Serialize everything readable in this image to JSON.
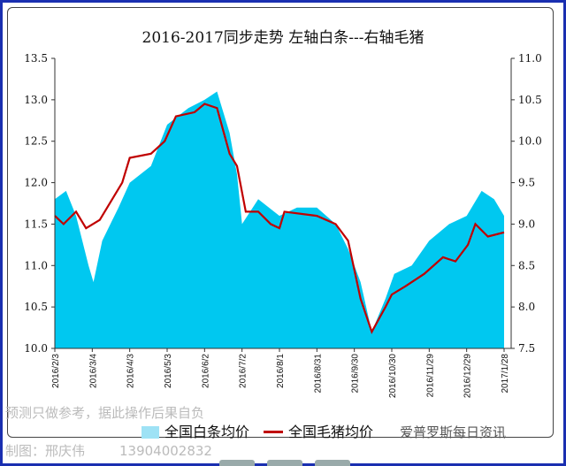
{
  "chart_data": {
    "type": "area+line",
    "title": "2016-2017同步走势      左轴白条---右轴毛猪",
    "left_axis": {
      "ylim": [
        10.0,
        13.5
      ],
      "ticks": [
        "10.0",
        "10.5",
        "11.0",
        "11.5",
        "12.0",
        "12.5",
        "13.0",
        "13.5"
      ]
    },
    "right_axis": {
      "ylim": [
        7.5,
        11.0
      ],
      "ticks": [
        "7.5",
        "8.0",
        "8.5",
        "9.0",
        "9.5",
        "10.0",
        "10.5",
        "11.0"
      ]
    },
    "x_ticks": [
      "2016/2/3",
      "2016/3/4",
      "2016/4/3",
      "2016/5/3",
      "2016/6/2",
      "2016/7/2",
      "2016/8/1",
      "2016/8/31",
      "2016/9/30",
      "2016/10/30",
      "2016/11/29",
      "2016/12/29",
      "2017/1/28"
    ],
    "series": [
      {
        "name": "全国白条均价",
        "axis": "left",
        "type": "area",
        "color": "#00c8f0",
        "points": [
          [
            "2016-02-03",
            11.8
          ],
          [
            "2016-02-12",
            11.9
          ],
          [
            "2016-02-20",
            11.6
          ],
          [
            "2016-03-01",
            11.0
          ],
          [
            "2016-03-05",
            10.8
          ],
          [
            "2016-03-12",
            11.3
          ],
          [
            "2016-03-25",
            11.7
          ],
          [
            "2016-04-03",
            12.0
          ],
          [
            "2016-04-20",
            12.2
          ],
          [
            "2016-05-03",
            12.7
          ],
          [
            "2016-05-20",
            12.9
          ],
          [
            "2016-06-02",
            13.0
          ],
          [
            "2016-06-12",
            13.1
          ],
          [
            "2016-06-22",
            12.6
          ],
          [
            "2016-06-28",
            12.1
          ],
          [
            "2016-07-02",
            11.5
          ],
          [
            "2016-07-15",
            11.8
          ],
          [
            "2016-08-01",
            11.6
          ],
          [
            "2016-08-15",
            11.7
          ],
          [
            "2016-08-31",
            11.7
          ],
          [
            "2016-09-15",
            11.5
          ],
          [
            "2016-09-25",
            11.2
          ],
          [
            "2016-10-05",
            10.8
          ],
          [
            "2016-10-14",
            10.2
          ],
          [
            "2016-10-25",
            10.6
          ],
          [
            "2016-11-01",
            10.9
          ],
          [
            "2016-11-15",
            11.0
          ],
          [
            "2016-11-29",
            11.3
          ],
          [
            "2016-12-15",
            11.5
          ],
          [
            "2016-12-29",
            11.6
          ],
          [
            "2017-01-10",
            11.9
          ],
          [
            "2017-01-20",
            11.8
          ],
          [
            "2017-01-28",
            11.6
          ]
        ]
      },
      {
        "name": "全国毛猪均价",
        "axis": "right",
        "type": "line",
        "color": "#c00000",
        "points": [
          [
            "2016-02-03",
            9.1
          ],
          [
            "2016-02-10",
            9.0
          ],
          [
            "2016-02-20",
            9.15
          ],
          [
            "2016-02-28",
            8.95
          ],
          [
            "2016-03-10",
            9.05
          ],
          [
            "2016-03-20",
            9.3
          ],
          [
            "2016-03-28",
            9.5
          ],
          [
            "2016-04-03",
            9.8
          ],
          [
            "2016-04-20",
            9.85
          ],
          [
            "2016-05-01",
            10.0
          ],
          [
            "2016-05-10",
            10.3
          ],
          [
            "2016-05-25",
            10.35
          ],
          [
            "2016-06-02",
            10.45
          ],
          [
            "2016-06-12",
            10.4
          ],
          [
            "2016-06-22",
            9.85
          ],
          [
            "2016-06-28",
            9.7
          ],
          [
            "2016-07-05",
            9.15
          ],
          [
            "2016-07-15",
            9.15
          ],
          [
            "2016-07-25",
            9.0
          ],
          [
            "2016-08-01",
            8.95
          ],
          [
            "2016-08-05",
            9.15
          ],
          [
            "2016-08-31",
            9.1
          ],
          [
            "2016-09-15",
            9.0
          ],
          [
            "2016-09-25",
            8.8
          ],
          [
            "2016-10-05",
            8.1
          ],
          [
            "2016-10-14",
            7.7
          ],
          [
            "2016-10-25",
            8.0
          ],
          [
            "2016-10-30",
            8.15
          ],
          [
            "2016-11-10",
            8.25
          ],
          [
            "2016-11-25",
            8.4
          ],
          [
            "2016-12-10",
            8.6
          ],
          [
            "2016-12-20",
            8.55
          ],
          [
            "2016-12-30",
            8.75
          ],
          [
            "2017-01-05",
            9.0
          ],
          [
            "2017-01-15",
            8.85
          ],
          [
            "2017-01-28",
            8.9
          ]
        ]
      }
    ],
    "legend_position": "bottom",
    "grid": false
  },
  "watermarks": {
    "disclaimer": "预测只做参考，据此操作后果自负",
    "author": "制图：邢庆伟",
    "phone": "13904002832",
    "brand": "爱普罗斯每日资讯"
  }
}
